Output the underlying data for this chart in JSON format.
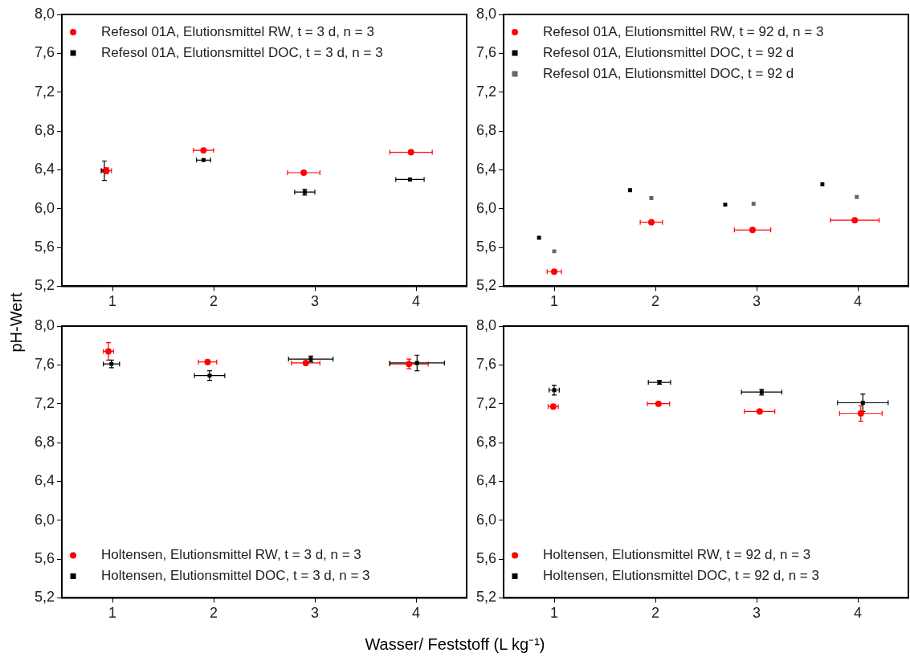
{
  "chart_data": [
    {
      "type": "scatter",
      "ylabel": "pH-Wert",
      "xlim": [
        0.5,
        4.5
      ],
      "xticks": [
        1,
        2,
        3,
        4
      ],
      "ylim": [
        5.2,
        8.0
      ],
      "yticks": [
        {
          "value": 5.2,
          "label": "5,2"
        },
        {
          "value": 5.6,
          "label": "5,6"
        },
        {
          "value": 6.0,
          "label": "6,0"
        },
        {
          "value": 6.4,
          "label": "6,4"
        },
        {
          "value": 6.8,
          "label": "6,8"
        },
        {
          "value": 7.2,
          "label": "7,2"
        },
        {
          "value": 7.6,
          "label": "7,6"
        },
        {
          "value": 8.0,
          "label": "8,0"
        }
      ],
      "legend": "top left",
      "grid": false,
      "series": [
        {
          "name": "Refesol 01A, Elutionsmittel RW, t = 3 d, n = 3",
          "color": "#ff0000",
          "marker": "circle",
          "x": [
            0.94,
            1.9,
            2.89,
            3.95
          ],
          "values": [
            6.39,
            6.6,
            6.37,
            6.58
          ],
          "errors": [
            0.03,
            null,
            0.02,
            null
          ],
          "xerrors": [
            0.05,
            0.1,
            0.16,
            0.21
          ]
        },
        {
          "name": "Refesol 01A, Elutionsmittel DOC, t = 3 d, n = 3",
          "color": "#000000",
          "marker": "square",
          "x": [
            0.92,
            1.9,
            2.9,
            3.94
          ],
          "values": [
            6.39,
            6.5,
            6.17,
            6.3
          ],
          "errors": [
            0.1,
            null,
            0.03,
            null
          ],
          "xerrors": [
            0.03,
            0.07,
            0.1,
            0.14
          ]
        }
      ]
    },
    {
      "type": "scatter",
      "xlim": [
        0.5,
        4.5
      ],
      "xticks": [
        1,
        2,
        3,
        4
      ],
      "ylim": [
        5.2,
        8.0
      ],
      "yticks": [
        {
          "value": 5.2,
          "label": "5,2"
        },
        {
          "value": 5.6,
          "label": "5,6"
        },
        {
          "value": 6.0,
          "label": "6,0"
        },
        {
          "value": 6.4,
          "label": "6,4"
        },
        {
          "value": 6.8,
          "label": "6,8"
        },
        {
          "value": 7.2,
          "label": "7,2"
        },
        {
          "value": 7.6,
          "label": "7,6"
        },
        {
          "value": 8.0,
          "label": "8,0"
        }
      ],
      "legend": "top left",
      "grid": false,
      "series": [
        {
          "name": "Refesol 01A, Elutionsmittel RW, t = 92 d, n = 3",
          "color": "#ff0000",
          "marker": "circle",
          "x": [
            1.0,
            1.96,
            2.96,
            3.97
          ],
          "values": [
            5.35,
            5.86,
            5.78,
            5.88
          ],
          "xerrors": [
            0.07,
            0.11,
            0.18,
            0.24
          ]
        },
        {
          "name": "Refesol 01A, Elutionsmittel DOC, t = 92 d",
          "color": "#000000",
          "marker": "square",
          "x": [
            0.85,
            1.75,
            2.69,
            3.65
          ],
          "values": [
            5.7,
            6.19,
            6.04,
            6.25
          ]
        },
        {
          "name": "Refesol 01A, Elutionsmittel DOC, t = 92 d",
          "color": "#666666",
          "marker": "square",
          "x": [
            1.0,
            1.96,
            2.97,
            3.99
          ],
          "values": [
            5.56,
            6.11,
            6.05,
            6.12
          ]
        }
      ]
    },
    {
      "type": "scatter",
      "xlabel": "Wasser/ Feststoff (L kg⁻¹)",
      "xlim": [
        0.5,
        4.5
      ],
      "xticks": [
        1,
        2,
        3,
        4
      ],
      "ylim": [
        5.2,
        8.0
      ],
      "yticks": [
        {
          "value": 5.2,
          "label": "5,2"
        },
        {
          "value": 5.6,
          "label": "5,6"
        },
        {
          "value": 6.0,
          "label": "6,0"
        },
        {
          "value": 6.4,
          "label": "6,4"
        },
        {
          "value": 6.8,
          "label": "6,8"
        },
        {
          "value": 7.2,
          "label": "7,2"
        },
        {
          "value": 7.6,
          "label": "7,6"
        },
        {
          "value": 8.0,
          "label": "8,0"
        }
      ],
      "legend": "bottom left",
      "grid": false,
      "series": [
        {
          "name": "Holtensen, Elutionsmittel RW, t = 3 d, n = 3",
          "color": "#ff0000",
          "marker": "circle",
          "x": [
            0.96,
            1.94,
            2.91,
            3.93
          ],
          "values": [
            7.74,
            7.63,
            7.62,
            7.61
          ],
          "errors": [
            0.09,
            0.02,
            null,
            0.05
          ],
          "xerrors": [
            0.05,
            0.09,
            0.14,
            0.19
          ]
        },
        {
          "name": "Holtensen, Elutionsmittel DOC, t = 3 d, n = 3",
          "color": "#000000",
          "marker": "square",
          "x": [
            0.99,
            1.96,
            2.96,
            4.01
          ],
          "values": [
            7.61,
            7.49,
            7.66,
            7.62
          ],
          "errors": [
            0.04,
            0.05,
            0.03,
            0.08
          ],
          "xerrors": [
            0.08,
            0.15,
            0.22,
            0.27
          ]
        }
      ]
    },
    {
      "type": "scatter",
      "xlim": [
        0.5,
        4.5
      ],
      "xticks": [
        1,
        2,
        3,
        4
      ],
      "ylim": [
        5.2,
        8.0
      ],
      "yticks": [
        {
          "value": 5.2,
          "label": "5,2"
        },
        {
          "value": 5.6,
          "label": "5,6"
        },
        {
          "value": 6.0,
          "label": "6,0"
        },
        {
          "value": 6.4,
          "label": "6,4"
        },
        {
          "value": 6.8,
          "label": "6,8"
        },
        {
          "value": 7.2,
          "label": "7,2"
        },
        {
          "value": 7.6,
          "label": "7,6"
        },
        {
          "value": 8.0,
          "label": "8,0"
        }
      ],
      "legend": "bottom left",
      "grid": false,
      "series": [
        {
          "name": "Holtensen, Elutionsmittel RW, t = 92 d, n = 3",
          "color": "#ff0000",
          "marker": "circle",
          "x": [
            0.99,
            2.03,
            3.03,
            4.03
          ],
          "values": [
            7.17,
            7.2,
            7.12,
            7.1
          ],
          "errors": [
            null,
            null,
            null,
            0.08
          ],
          "xerrors": [
            0.05,
            0.11,
            0.15,
            0.21
          ]
        },
        {
          "name": "Holtensen, Elutionsmittel DOC, t = 92 d, n = 3",
          "color": "#000000",
          "marker": "square",
          "x": [
            1.0,
            2.04,
            3.05,
            4.05
          ],
          "values": [
            7.34,
            7.42,
            7.32,
            7.21
          ],
          "errors": [
            0.05,
            0.02,
            0.03,
            0.09
          ],
          "xerrors": [
            0.05,
            0.11,
            0.2,
            0.25
          ]
        }
      ]
    }
  ]
}
